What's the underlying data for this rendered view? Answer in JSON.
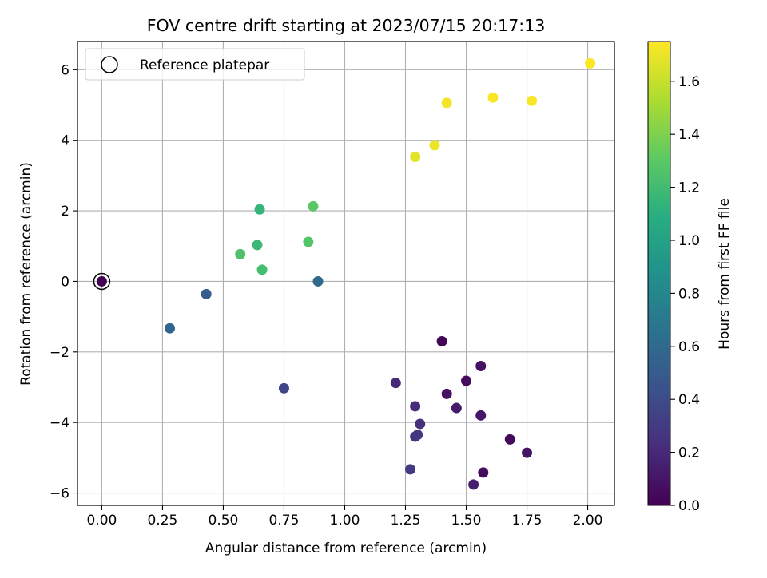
{
  "chart_data": {
    "type": "scatter",
    "title": "FOV centre drift starting at 2023/07/15 20:17:13",
    "xlabel": "Angular distance from reference (arcmin)",
    "ylabel": "Rotation from reference (arcmin)",
    "xlim": [
      -0.1,
      2.11
    ],
    "ylim": [
      -6.35,
      6.8
    ],
    "x_ticks": [
      0.0,
      0.25,
      0.5,
      0.75,
      1.0,
      1.25,
      1.5,
      1.75,
      2.0
    ],
    "x_tick_labels": [
      "0.00",
      "0.25",
      "0.50",
      "0.75",
      "1.00",
      "1.25",
      "1.50",
      "1.75",
      "2.00"
    ],
    "y_ticks": [
      -6,
      -4,
      -2,
      0,
      2,
      4,
      6
    ],
    "y_tick_labels": [
      "−6",
      "−4",
      "−2",
      "0",
      "2",
      "4",
      "6"
    ],
    "grid": true,
    "legend": {
      "placement": "top-left",
      "entries": [
        {
          "label": "Reference platepar",
          "marker": "open-circle"
        }
      ]
    },
    "reference_point": {
      "x": 0.0,
      "y": 0.0
    },
    "colorbar": {
      "label": "Hours from first FF file",
      "colormap": "viridis",
      "range": [
        0.0,
        1.75
      ],
      "ticks": [
        0.0,
        0.2,
        0.4,
        0.6,
        0.8,
        1.0,
        1.2,
        1.4,
        1.6
      ],
      "tick_labels": [
        "0.0",
        "0.2",
        "0.4",
        "0.6",
        "0.8",
        "1.0",
        "1.2",
        "1.4",
        "1.6"
      ]
    },
    "points": [
      {
        "x": 0.0,
        "y": 0.0,
        "hours": 0.0
      },
      {
        "x": 1.4,
        "y": -1.7,
        "hours": 0.02
      },
      {
        "x": 1.57,
        "y": -5.42,
        "hours": 0.05
      },
      {
        "x": 1.68,
        "y": -4.48,
        "hours": 0.04
      },
      {
        "x": 1.5,
        "y": -2.82,
        "hours": 0.06
      },
      {
        "x": 1.56,
        "y": -2.4,
        "hours": 0.08
      },
      {
        "x": 1.42,
        "y": -3.19,
        "hours": 0.09
      },
      {
        "x": 1.75,
        "y": -4.86,
        "hours": 0.1
      },
      {
        "x": 1.56,
        "y": -3.8,
        "hours": 0.11
      },
      {
        "x": 1.46,
        "y": -3.59,
        "hours": 0.13
      },
      {
        "x": 1.53,
        "y": -5.76,
        "hours": 0.15
      },
      {
        "x": 1.21,
        "y": -2.88,
        "hours": 0.2
      },
      {
        "x": 1.29,
        "y": -3.54,
        "hours": 0.22
      },
      {
        "x": 1.31,
        "y": -4.04,
        "hours": 0.24
      },
      {
        "x": 1.29,
        "y": -4.4,
        "hours": 0.25
      },
      {
        "x": 1.3,
        "y": -4.35,
        "hours": 0.27
      },
      {
        "x": 1.27,
        "y": -5.33,
        "hours": 0.3
      },
      {
        "x": 0.75,
        "y": -3.03,
        "hours": 0.36
      },
      {
        "x": 0.43,
        "y": -0.36,
        "hours": 0.52
      },
      {
        "x": 0.28,
        "y": -1.33,
        "hours": 0.57
      },
      {
        "x": 0.89,
        "y": 0.0,
        "hours": 0.6
      },
      {
        "x": 0.65,
        "y": 2.04,
        "hours": 1.15
      },
      {
        "x": 0.64,
        "y": 1.03,
        "hours": 1.17
      },
      {
        "x": 0.66,
        "y": 0.33,
        "hours": 1.22
      },
      {
        "x": 0.57,
        "y": 0.77,
        "hours": 1.25
      },
      {
        "x": 0.85,
        "y": 1.12,
        "hours": 1.27
      },
      {
        "x": 0.87,
        "y": 2.13,
        "hours": 1.3
      },
      {
        "x": 1.29,
        "y": 3.53,
        "hours": 1.68
      },
      {
        "x": 1.37,
        "y": 3.86,
        "hours": 1.7
      },
      {
        "x": 1.42,
        "y": 5.06,
        "hours": 1.72
      },
      {
        "x": 1.61,
        "y": 5.21,
        "hours": 1.73
      },
      {
        "x": 1.77,
        "y": 5.12,
        "hours": 1.74
      },
      {
        "x": 2.01,
        "y": 6.18,
        "hours": 1.75
      }
    ]
  }
}
